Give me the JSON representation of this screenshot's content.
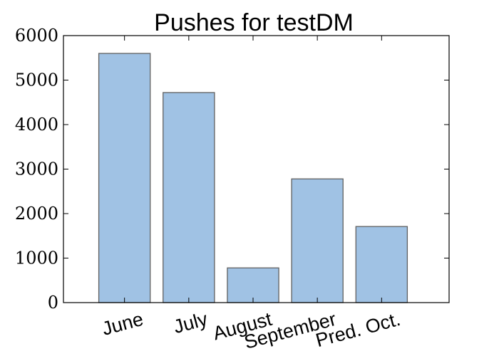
{
  "chart_data": {
    "type": "bar",
    "title": "Pushes for testDM",
    "categories": [
      "June",
      "July",
      "August",
      "September",
      "Pred. Oct."
    ],
    "values": [
      5600,
      4720,
      780,
      2780,
      1710
    ],
    "xlabel": "",
    "ylabel": "",
    "ylim": [
      0,
      6000
    ],
    "yticks": [
      0,
      1000,
      2000,
      3000,
      4000,
      5000,
      6000
    ],
    "grid": false,
    "colors": {
      "bar_fill": "#a0c2e4",
      "bar_edge": "#606060",
      "axis": "#000000"
    }
  }
}
